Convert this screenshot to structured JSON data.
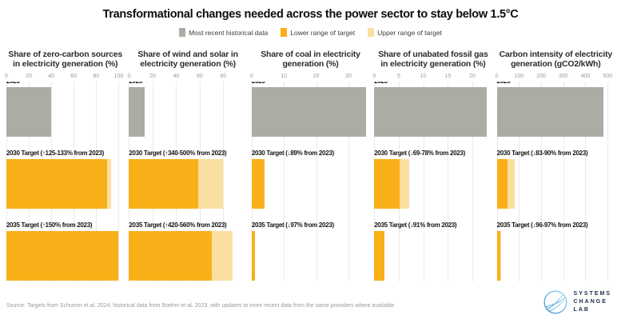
{
  "title": "Transformational changes needed across the power sector to stay below 1.5°C",
  "legend": [
    {
      "label": "Most recent historical data",
      "color": "#ACACA4"
    },
    {
      "label": "Lower range of target",
      "color": "#F9B018"
    },
    {
      "label": "Upper range of target",
      "color": "#FBDFA0"
    }
  ],
  "colors": {
    "historical": "#ACACA4",
    "target_lower": "#F9B018",
    "target_upper": "#FBDFA0",
    "gridline": "#EAEAE7",
    "logo_navy": "#1B2A4A",
    "logo_blue_light": "#9FD9F6",
    "logo_blue_dark": "#3E9AD2"
  },
  "chart_data": {
    "type": "bar",
    "orientation": "horizontal",
    "panels": [
      {
        "title": "Share of zero-carbon sources in electricity generation (%)",
        "unit": "%",
        "ticks": [
          0,
          20,
          40,
          60,
          80,
          100
        ],
        "xmax": 105,
        "rows": [
          {
            "label": "2023",
            "kind": "historical",
            "value": 40
          },
          {
            "label": "2030 Target (↑125-133% from 2023)",
            "kind": "target",
            "lower": 90,
            "upper": 93
          },
          {
            "label": "2035 Target (↑150% from 2023)",
            "kind": "target",
            "lower": 100,
            "upper": 100
          }
        ]
      },
      {
        "title": "Share of wind and solar in electricity generation (%)",
        "unit": "%",
        "ticks": [
          0,
          20,
          40,
          60,
          80
        ],
        "xmax": 100,
        "rows": [
          {
            "label": "2023",
            "kind": "historical",
            "value": 13.4
          },
          {
            "label": "2030 Target (↑340-500% from 2023)",
            "kind": "target",
            "lower": 59,
            "upper": 80
          },
          {
            "label": "2035 Target (↑420-560% from 2023)",
            "kind": "target",
            "lower": 70,
            "upper": 88
          }
        ]
      },
      {
        "title": "Share of coal in electricity generation (%)",
        "unit": "%",
        "ticks": [
          0,
          10,
          20,
          30
        ],
        "xmax": 36.5,
        "rows": [
          {
            "label": "2023",
            "kind": "historical",
            "value": 35.5
          },
          {
            "label": "2030 Target (↓89% from 2023)",
            "kind": "target",
            "lower": 3.9,
            "upper": 3.9
          },
          {
            "label": "2035 Target (↓97% from 2023)",
            "kind": "target",
            "lower": 1.1,
            "upper": 1.1
          }
        ]
      },
      {
        "title": "Share of unabated fossil gas in electricity generation (%)",
        "unit": "%",
        "ticks": [
          0,
          5,
          10,
          15,
          20
        ],
        "xmax": 24,
        "rows": [
          {
            "label": "2023",
            "kind": "historical",
            "value": 23
          },
          {
            "label": "2030 Target (↓69-78% from 2023)",
            "kind": "target",
            "lower": 5.1,
            "upper": 7.1
          },
          {
            "label": "2035 Target (↓91% from 2023)",
            "kind": "target",
            "lower": 2.1,
            "upper": 2.1
          }
        ]
      },
      {
        "title": "Carbon intensity of electricity generation (gCO2/kWh)",
        "unit": "gCO2/kWh",
        "ticks": [
          0,
          100,
          200,
          300,
          400,
          500
        ],
        "xmax": 532,
        "rows": [
          {
            "label": "2023",
            "kind": "historical",
            "value": 480
          },
          {
            "label": "2030 Target (↓83-90% from 2023)",
            "kind": "target",
            "lower": 48,
            "upper": 82
          },
          {
            "label": "2035 Target (↓96-97% from 2023)",
            "kind": "target",
            "lower": 14,
            "upper": 19
          }
        ]
      }
    ]
  },
  "footer": {
    "source": "Source: Targets from Schumer et al. 2024; historical data from Boehm et al. 2023, with updates to more recent data from the same providers where available.",
    "logo_lines": [
      "SYSTEMS",
      "CHANGE",
      "LAB"
    ]
  }
}
